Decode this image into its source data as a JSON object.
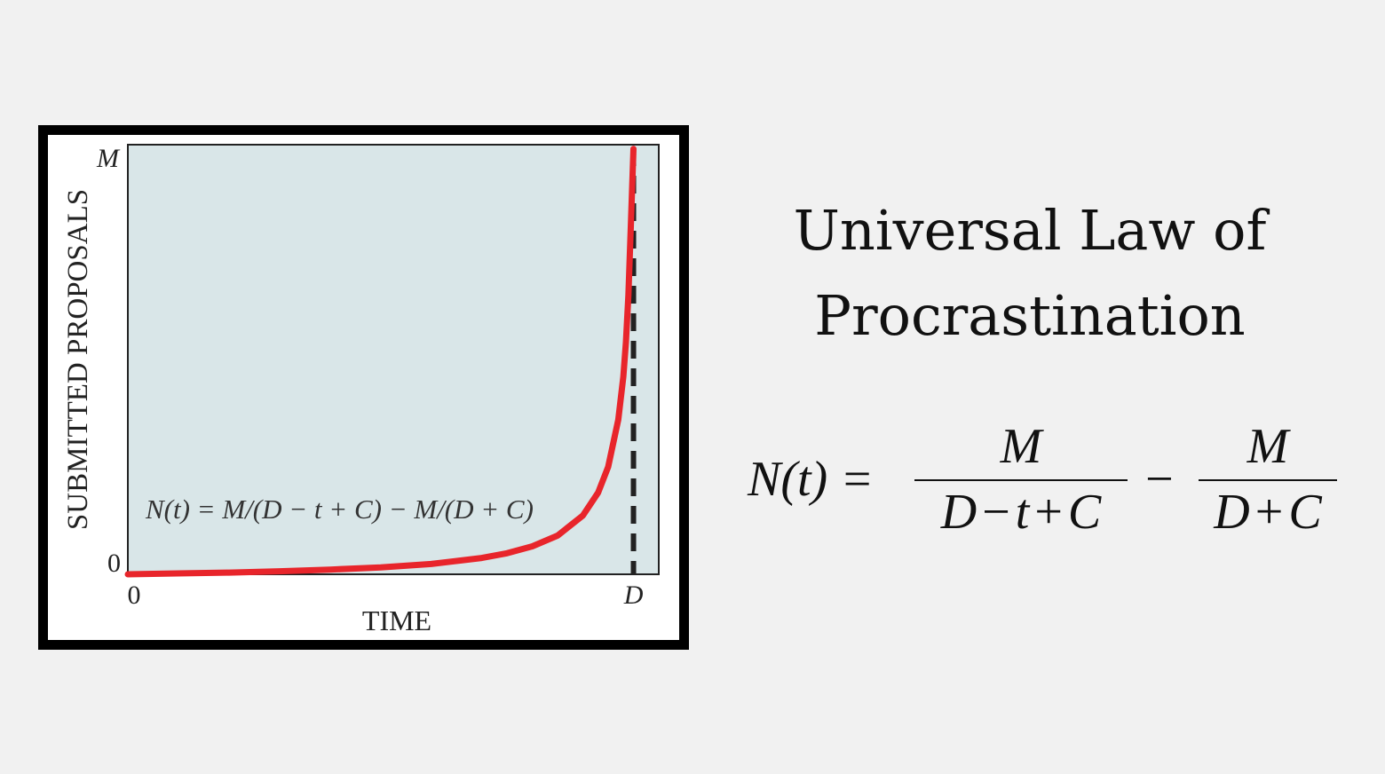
{
  "chart_data": {
    "type": "line",
    "title": "",
    "xlabel": "TIME",
    "ylabel": "SUBMITTED PROPOSALS",
    "x_ticks": [
      "0",
      "D"
    ],
    "y_ticks": [
      "0",
      "M"
    ],
    "annotation": "N(t) = M/(D − t + C) − M/(D + C)",
    "reference_line": {
      "x": "D",
      "style": "dashed",
      "color": "#222222"
    },
    "series": [
      {
        "color": "#e8252b",
        "x": [
          0,
          0.1,
          0.2,
          0.3,
          0.4,
          0.5,
          0.6,
          0.7,
          0.75,
          0.8,
          0.85,
          0.9,
          0.93,
          0.95,
          0.97,
          0.98,
          0.985,
          0.99,
          0.995,
          1.0
        ],
        "y": [
          0,
          0.002,
          0.004,
          0.007,
          0.011,
          0.016,
          0.024,
          0.038,
          0.049,
          0.065,
          0.09,
          0.137,
          0.19,
          0.25,
          0.36,
          0.46,
          0.54,
          0.65,
          0.82,
          0.99
        ]
      }
    ],
    "xlim": [
      0,
      1.05
    ],
    "ylim": [
      0,
      1
    ],
    "plot_background": "#d9e6e8",
    "grid": false
  },
  "title": {
    "line1": "Universal Law of",
    "line2": "Procrastination"
  },
  "formula": {
    "lhs": "N(t) =",
    "frac1_num": "M",
    "frac1_den_a": "D",
    "frac1_den_op1": "−",
    "frac1_den_b": "t",
    "frac1_den_op2": "+",
    "frac1_den_c": "C",
    "minus": "−",
    "frac2_num": "M",
    "frac2_den_a": "D",
    "frac2_den_op": "+",
    "frac2_den_b": "C"
  }
}
